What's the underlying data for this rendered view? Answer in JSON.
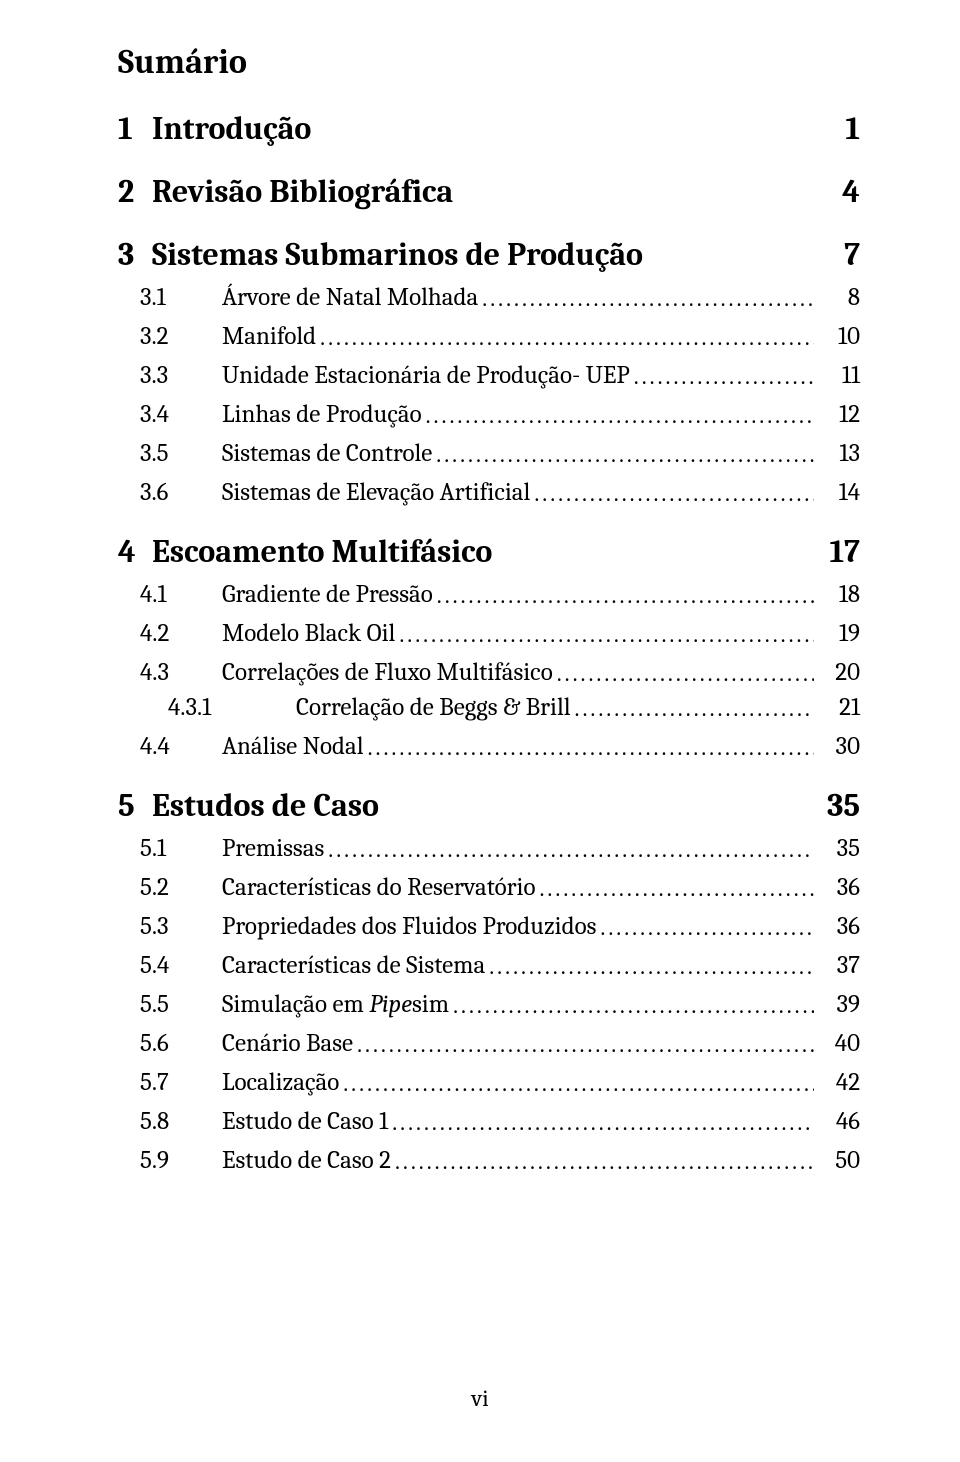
{
  "title": "Sumário",
  "page_number": "vi",
  "entries": [
    {
      "level": "chapter",
      "num": "1",
      "label": "Introdução",
      "page": "1",
      "leader": false
    },
    {
      "level": "chapter",
      "num": "2",
      "label": "Revisão Bibliográfica",
      "page": "4",
      "leader": false
    },
    {
      "level": "chapter",
      "num": "3",
      "label": "Sistemas Submarinos de Produção",
      "page": "7",
      "leader": false
    },
    {
      "level": "section",
      "num": "3.1",
      "label": "Árvore de Natal Molhada",
      "page": "8",
      "leader": true
    },
    {
      "level": "section",
      "num": "3.2",
      "label": "Manifold",
      "page": "10",
      "leader": true
    },
    {
      "level": "section",
      "num": "3.3",
      "label": "Unidade Estacionária de Produção- UEP",
      "page": "11",
      "leader": true
    },
    {
      "level": "section",
      "num": "3.4",
      "label": "Linhas de Produção",
      "page": "12",
      "leader": true
    },
    {
      "level": "section",
      "num": "3.5",
      "label": "Sistemas de Controle",
      "page": "13",
      "leader": true
    },
    {
      "level": "section",
      "num": "3.6",
      "label": "Sistemas de Elevação Artificial",
      "page": "14",
      "leader": true
    },
    {
      "level": "chapter",
      "num": "4",
      "label": "Escoamento Multifásico",
      "page": "17",
      "leader": false
    },
    {
      "level": "section",
      "num": "4.1",
      "label": "Gradiente de Pressão",
      "page": "18",
      "leader": true
    },
    {
      "level": "section",
      "num": "4.2",
      "label": "Modelo Black Oil",
      "page": "19",
      "leader": true
    },
    {
      "level": "section",
      "num": "4.3",
      "label": "Correlações de Fluxo Multifásico",
      "page": "20",
      "leader": true
    },
    {
      "level": "subsection",
      "num": "4.3.1",
      "label": "Correlação de Beggs & Brill",
      "page": "21",
      "leader": true
    },
    {
      "level": "section",
      "num": "4.4",
      "label": "Análise Nodal",
      "page": "30",
      "leader": true
    },
    {
      "level": "chapter",
      "num": "5",
      "label": "Estudos de Caso",
      "page": "35",
      "leader": false
    },
    {
      "level": "section",
      "num": "5.1",
      "label": "Premissas",
      "page": "35",
      "leader": true
    },
    {
      "level": "section",
      "num": "5.2",
      "label": "Características do Reservatório",
      "page": "36",
      "leader": true
    },
    {
      "level": "section",
      "num": "5.3",
      "label": "Propriedades dos Fluidos Produzidos",
      "page": "36",
      "leader": true
    },
    {
      "level": "section",
      "num": "5.4",
      "label": "Características de Sistema",
      "page": "37",
      "leader": true
    },
    {
      "level": "section",
      "num": "5.5",
      "label": "Simulação em Pipesim",
      "page": "39",
      "leader": true,
      "italic_from": 13
    },
    {
      "level": "section",
      "num": "5.6",
      "label": "Cenário Base",
      "page": "40",
      "leader": true
    },
    {
      "level": "section",
      "num": "5.7",
      "label": "Localização",
      "page": "42",
      "leader": true
    },
    {
      "level": "section",
      "num": "5.8",
      "label": "Estudo de Caso 1",
      "page": "46",
      "leader": true
    },
    {
      "level": "section",
      "num": "5.9",
      "label": "Estudo de Caso 2",
      "page": "50",
      "leader": true
    }
  ]
}
